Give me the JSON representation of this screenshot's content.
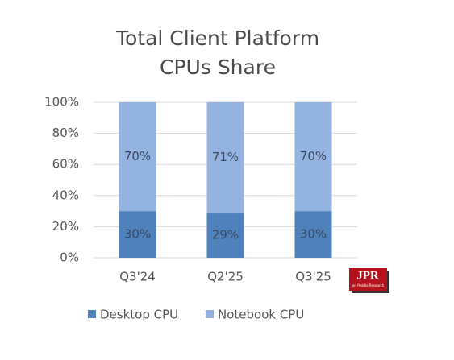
{
  "chart_data": {
    "type": "stacked-bar",
    "title": "Total Client Platform CPUs Share",
    "categories": [
      "Q3'24",
      "Q2'25",
      "Q3'25"
    ],
    "series": [
      {
        "name": "Desktop CPU",
        "color": "#4f81bd",
        "values": [
          30,
          29,
          30
        ],
        "value_labels": [
          "30%",
          "29%",
          "30%"
        ]
      },
      {
        "name": "Notebook CPU",
        "color": "#95b3e0",
        "values": [
          70,
          71,
          70
        ],
        "value_labels": [
          "70%",
          "71%",
          "70%"
        ]
      }
    ],
    "ylim": [
      0,
      100
    ],
    "yticks": [
      {
        "value": 0,
        "label": "0%"
      },
      {
        "value": 20,
        "label": "20%"
      },
      {
        "value": 40,
        "label": "40%"
      },
      {
        "value": 60,
        "label": "60%"
      },
      {
        "value": 80,
        "label": "80%"
      },
      {
        "value": 100,
        "label": "100%"
      }
    ],
    "grid": true,
    "legend": "bottom",
    "logo": {
      "text": "JPR",
      "subtext": "Jon Peddie Research"
    }
  }
}
